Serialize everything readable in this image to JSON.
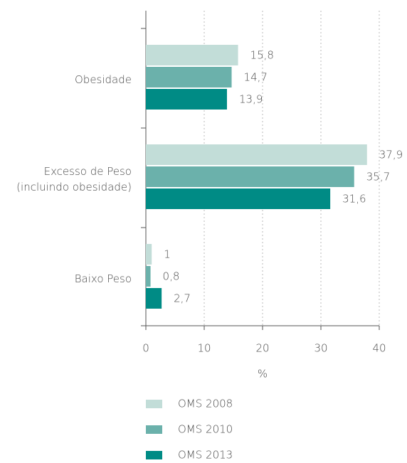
{
  "chart_data": {
    "type": "bar",
    "orientation": "horizontal",
    "categories": [
      "Obesidade",
      "Excesso de Peso\n(incluindo obesidade)",
      "Baixo Peso"
    ],
    "series": [
      {
        "name": "OMS 2008",
        "color": "#c2ddd8",
        "values": [
          15.8,
          37.9,
          1
        ],
        "value_labels": [
          "15,8",
          "37,9",
          "1"
        ]
      },
      {
        "name": "OMS 2010",
        "color": "#6bb1ab",
        "values": [
          14.7,
          35.7,
          0.8
        ],
        "value_labels": [
          "14,7",
          "35,7",
          "0,8"
        ]
      },
      {
        "name": "OMS 2013",
        "color": "#008b85",
        "values": [
          13.9,
          31.6,
          2.7
        ],
        "value_labels": [
          "13,9",
          "31,6",
          "2,7"
        ]
      }
    ],
    "xlabel": "%",
    "xlim": [
      0,
      40
    ],
    "xticks": [
      0,
      10,
      20,
      30,
      40
    ],
    "grid": true,
    "legend": "bottom"
  }
}
